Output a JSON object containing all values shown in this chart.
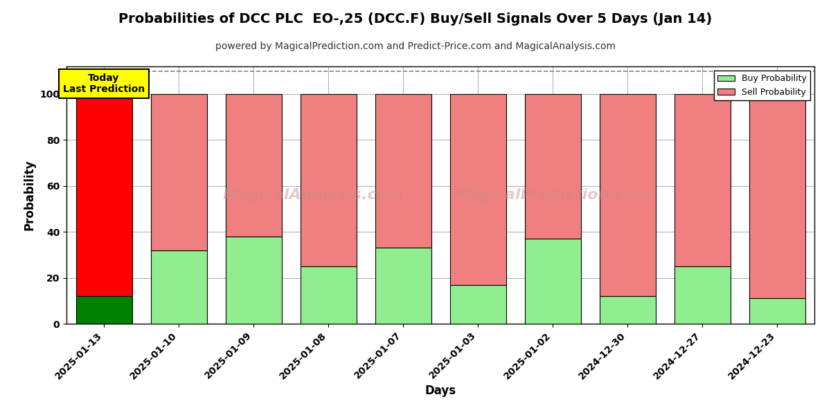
{
  "title": "Probabilities of DCC PLC  EO-,25 (DCC.F) Buy/Sell Signals Over 5 Days (Jan 14)",
  "subtitle": "powered by MagicalPrediction.com and Predict-Price.com and MagicalAnalysis.com",
  "xlabel": "Days",
  "ylabel": "Probability",
  "categories": [
    "2025-01-13",
    "2025-01-10",
    "2025-01-09",
    "2025-01-08",
    "2025-01-07",
    "2025-01-03",
    "2025-01-02",
    "2024-12-30",
    "2024-12-27",
    "2024-12-23"
  ],
  "buy_values": [
    12,
    32,
    38,
    25,
    33,
    17,
    37,
    12,
    25,
    11
  ],
  "sell_values": [
    88,
    68,
    62,
    75,
    67,
    83,
    63,
    88,
    75,
    89
  ],
  "buy_colors_today": "#008000",
  "sell_colors_today": "#FF0000",
  "buy_color": "#90EE90",
  "sell_color": "#F08080",
  "today_label": "Today\nLast Prediction",
  "today_bg": "#FFFF00",
  "legend_buy_color": "#90EE90",
  "legend_sell_color": "#F08080",
  "ylim": [
    0,
    112
  ],
  "yticks": [
    0,
    20,
    40,
    60,
    80,
    100
  ],
  "dashed_line_y": 110,
  "watermark_text1": "MagicalAnalysis.com",
  "watermark_text2": "MagicalPrediction.com",
  "background_color": "#ffffff",
  "grid_color": "#aaaaaa",
  "bar_edge_color": "#000000",
  "fig_width": 12.0,
  "fig_height": 6.0,
  "dpi": 100
}
